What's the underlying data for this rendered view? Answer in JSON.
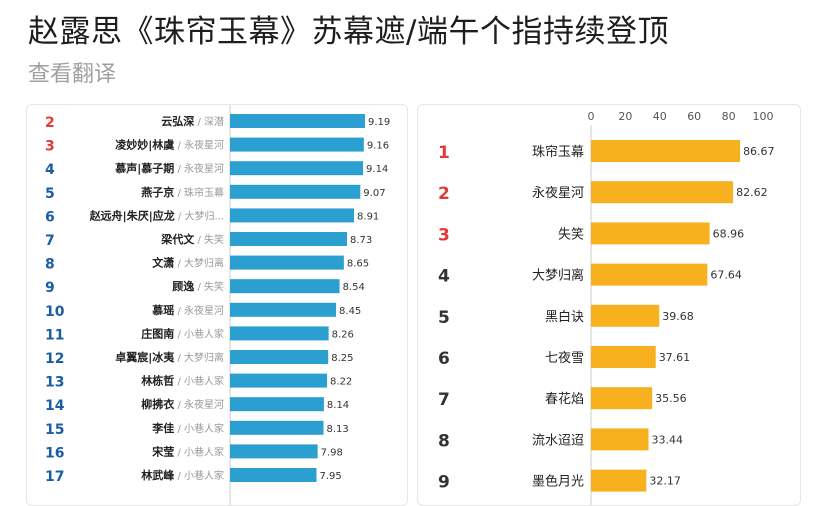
{
  "header": {
    "title": "赵露思《珠帘玉幕》苏幕遮/端午个指持续登顶",
    "translate_label": "查看翻译"
  },
  "colors": {
    "rank_top3": "#e53935",
    "rank_other": "#1a5ea6",
    "left_bar": "#2a9fd0",
    "right_bar": "#f7b11e"
  },
  "chart_data": [
    {
      "type": "bar",
      "orientation": "horizontal",
      "ranks": [
        2,
        3,
        4,
        5,
        6,
        7,
        8,
        9,
        10,
        11,
        12,
        13,
        14,
        15,
        16,
        17
      ],
      "categories": [
        "云弘深",
        "凌妙妙|林虞",
        "慕声|慕子期",
        "燕子京",
        "赵远舟|朱厌|应龙",
        "梁代文",
        "文潇",
        "顾逸",
        "慕瑶",
        "庄图南",
        "卓翼宸|冰夷",
        "林栋哲",
        "柳拂衣",
        "李佳",
        "宋莹",
        "林武峰"
      ],
      "dramas": [
        "深潜",
        "永夜星河",
        "永夜星河",
        "珠帘玉幕",
        "大梦归...",
        "失笑",
        "大梦归离",
        "失笑",
        "永夜星河",
        "小巷人家",
        "大梦归离",
        "小巷人家",
        "永夜星河",
        "小巷人家",
        "小巷人家",
        "小巷人家"
      ],
      "values": [
        9.19,
        9.16,
        9.14,
        9.07,
        8.91,
        8.73,
        8.65,
        8.54,
        8.45,
        8.26,
        8.25,
        8.22,
        8.14,
        8.13,
        7.98,
        7.95
      ],
      "value_labels": [
        "9.19",
        "9.16",
        "9.14",
        "9.07",
        "8.91",
        "8.73",
        "8.65",
        "8.54",
        "8.45",
        "8.26",
        "8.25",
        "8.22",
        "8.14",
        "8.13",
        "7.98",
        "7.95"
      ],
      "xlim": [
        5.74,
        9.6
      ]
    },
    {
      "type": "bar",
      "orientation": "horizontal",
      "ranks": [
        1,
        2,
        3,
        4,
        5,
        6,
        7,
        8,
        9
      ],
      "categories": [
        "珠帘玉幕",
        "永夜星河",
        "失笑",
        "大梦归离",
        "黑白诀",
        "七夜雪",
        "春花焰",
        "流水迢迢",
        "墨色月光"
      ],
      "values": [
        86.67,
        82.62,
        68.96,
        67.64,
        39.68,
        37.61,
        35.56,
        33.44,
        32.17
      ],
      "value_labels": [
        "86.67",
        "82.62",
        "68.96",
        "67.64",
        "39.68",
        "37.61",
        "35.56",
        "33.44",
        "32.17"
      ],
      "xticks": [
        "0",
        "20",
        "40",
        "60",
        "80",
        "100"
      ],
      "xlim": [
        0,
        100
      ]
    }
  ]
}
